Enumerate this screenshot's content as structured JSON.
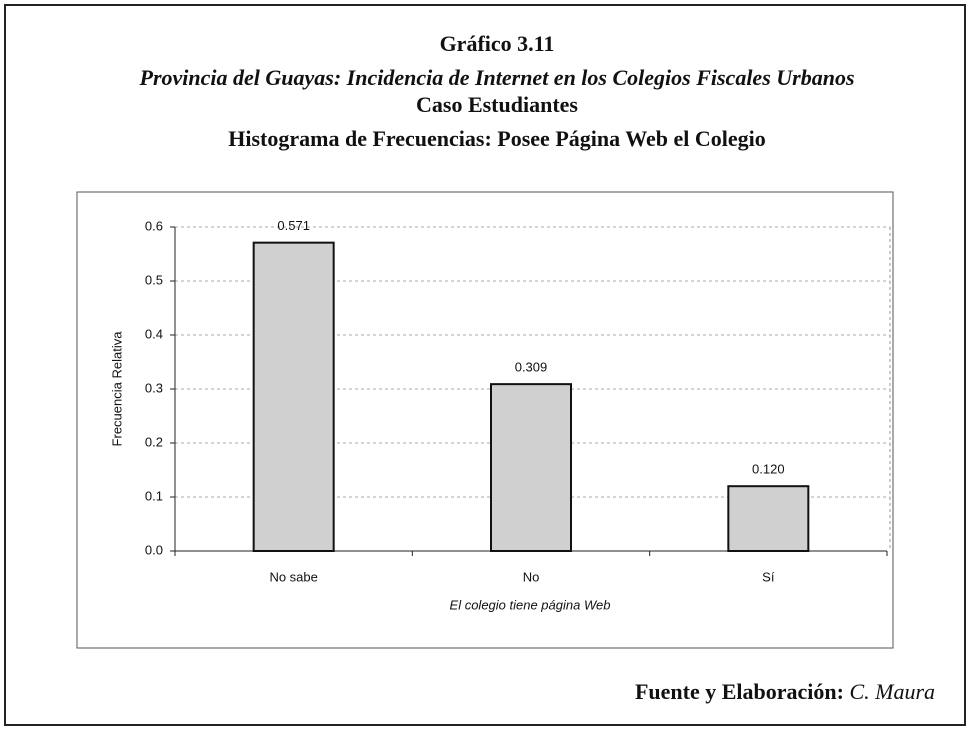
{
  "chart_data": {
    "type": "bar",
    "title": "Gráfico 3.11",
    "subtitle": "Provincia del Guayas: Incidencia de Internet en los Colegios Fiscales Urbanos",
    "subtitle2": "Caso Estudiantes",
    "subtitle3": "Histograma de Frecuencias: Posee Página Web el Colegio",
    "categories": [
      "No sabe",
      "No",
      "Sí"
    ],
    "values": [
      0.571,
      0.309,
      0.12
    ],
    "value_labels": [
      "0.571",
      "0.309",
      "0.120"
    ],
    "color": "#d0d0d0",
    "ylim": [
      0,
      0.6
    ],
    "yticks": [
      {
        "value": 0,
        "label": "0.0"
      },
      0.1,
      0.2,
      0.3,
      0.4,
      0.5,
      0.6
    ],
    "y_label": "Frecuencia Relativa",
    "x_label": "El colegio tiene página Web",
    "source_label": "Fuente y Elaboración:",
    "source": "C. Maura"
  }
}
